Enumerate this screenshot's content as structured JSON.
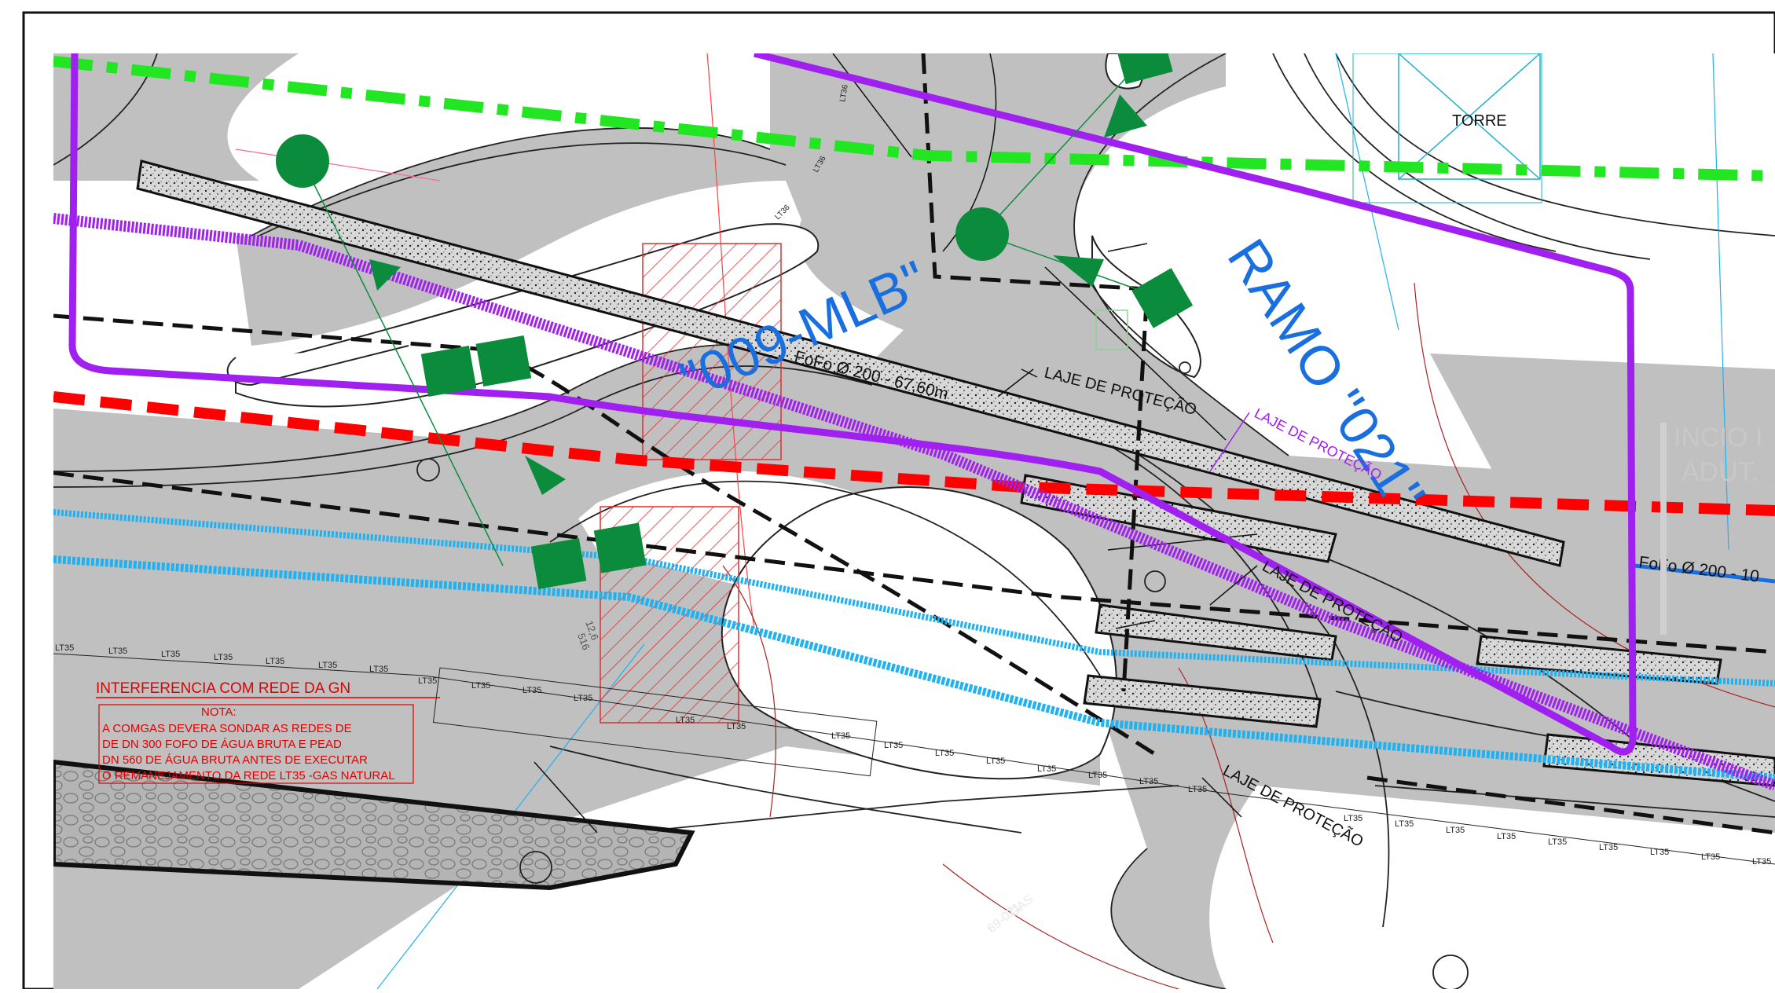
{
  "labels": {
    "ramo_009": "\"009-MLB\"",
    "ramo_021": "RAMO \"021\"",
    "torre": "TORRE",
    "fofo_200_67": "FoFo Ø 200 - 67,60m",
    "fofo_200_10": "FoFo Ø 200 - 10",
    "laje_1": "LAJE DE PROTEÇÃO",
    "laje_2": "LAJE DE PROTEÇÃO",
    "laje_3": "LAJE DE PROTEÇÃO",
    "laje_4": "LAJE DE PROTEÇÃO",
    "inicio_1": "INCIO I",
    "inicio_2": "ADUT.",
    "gas": "GAS",
    "gas_code": "69-021",
    "dim_1": "12,6",
    "dim_2": "516",
    "lt35": "LT35",
    "lt36": "LT36"
  },
  "interference": {
    "title": "INTERFERENCIA COM REDE  DA GN",
    "nota": "NOTA:",
    "lines": [
      "A COMGAS DEVERA SONDAR AS REDES DE",
      "DE DN 300 FOFO DE ÁGUA BRUTA E PEAD",
      "DN 560  DE ÁGUA BRUTA ANTES DE EXECUTAR",
      "O REMANEJAMENTO DA REDE LT35 -GAS NATURAL"
    ]
  },
  "colors": {
    "road": "#c0c0c0",
    "purple": "#a020f0",
    "green_dash": "#22e622",
    "red_dash": "#ff0000",
    "blue": "#1fb1f0",
    "dark_green": "#0a8c3c",
    "label_blue": "#1a6fe0"
  }
}
